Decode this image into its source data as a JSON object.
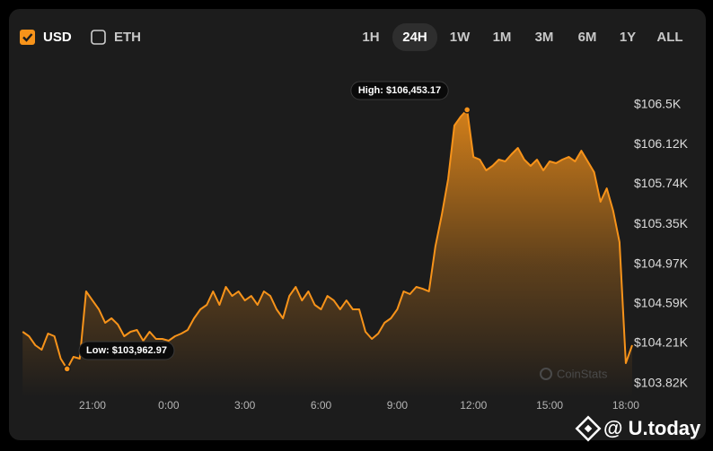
{
  "controls": {
    "currencies": [
      {
        "label": "USD",
        "checked": true
      },
      {
        "label": "ETH",
        "checked": false
      }
    ],
    "ranges": [
      "1H",
      "24H",
      "1W",
      "1M",
      "3M",
      "6M",
      "1Y",
      "ALL"
    ],
    "selected_range": "24H"
  },
  "chart_data": {
    "type": "area",
    "color": "#f7931a",
    "categories": [
      null,
      null,
      null,
      null,
      null,
      null,
      null,
      null,
      null,
      null,
      null,
      "21:00",
      null,
      null,
      null,
      null,
      null,
      null,
      null,
      null,
      null,
      null,
      null,
      "0:00",
      null,
      null,
      null,
      null,
      null,
      null,
      null,
      null,
      null,
      null,
      null,
      "3:00",
      null,
      null,
      null,
      null,
      null,
      null,
      null,
      null,
      null,
      null,
      null,
      "6:00",
      null,
      null,
      null,
      null,
      null,
      null,
      null,
      null,
      null,
      null,
      null,
      "9:00",
      null,
      null,
      null,
      null,
      null,
      null,
      null,
      null,
      null,
      null,
      null,
      "12:00",
      null,
      null,
      null,
      null,
      null,
      null,
      null,
      null,
      null,
      null,
      null,
      "15:00",
      null,
      null,
      null,
      null,
      null,
      null,
      null,
      null,
      null,
      null,
      null,
      "18:00",
      null
    ],
    "values": [
      104320,
      104277,
      104191,
      104147,
      104303,
      104277,
      104061,
      103962.97,
      104079,
      104061,
      104708,
      104621,
      104535,
      104406,
      104449,
      104389,
      104277,
      104320,
      104337,
      104234,
      104320,
      104251,
      104251,
      104234,
      104277,
      104303,
      104337,
      104449,
      104535,
      104578,
      104708,
      104578,
      104751,
      104664,
      104708,
      104621,
      104664,
      104578,
      104708,
      104664,
      104535,
      104449,
      104664,
      104751,
      104621,
      104708,
      104578,
      104535,
      104664,
      104621,
      104535,
      104621,
      104535,
      104535,
      104320,
      104251,
      104303,
      104406,
      104449,
      104535,
      104708,
      104682,
      104751,
      104733,
      104708,
      105138,
      105440,
      105785,
      106302,
      106388,
      106453.17,
      106000,
      105974,
      105871,
      105914,
      105974,
      105957,
      106026,
      106086,
      105974,
      105914,
      105974,
      105871,
      105957,
      105940,
      105974,
      106000,
      105957,
      106060,
      105957,
      105854,
      105569,
      105698,
      105483,
      105181,
      104018,
      104191
    ],
    "ylim": [
      103690,
      106780
    ],
    "yticks": [
      {
        "value": 106500,
        "label": "$106.5K"
      },
      {
        "value": 106120,
        "label": "$106.12K"
      },
      {
        "value": 105740,
        "label": "$105.74K"
      },
      {
        "value": 105350,
        "label": "$105.35K"
      },
      {
        "value": 104970,
        "label": "$104.97K"
      },
      {
        "value": 104590,
        "label": "$104.59K"
      },
      {
        "value": 104210,
        "label": "$104.21K"
      },
      {
        "value": 103820,
        "label": "$103.82K"
      }
    ],
    "high_label": "High: $106,453.17",
    "low_label": "Low: $103,962.97",
    "grid": false
  },
  "watermarks": {
    "chart": "CoinStats",
    "site": "@ U.today"
  }
}
